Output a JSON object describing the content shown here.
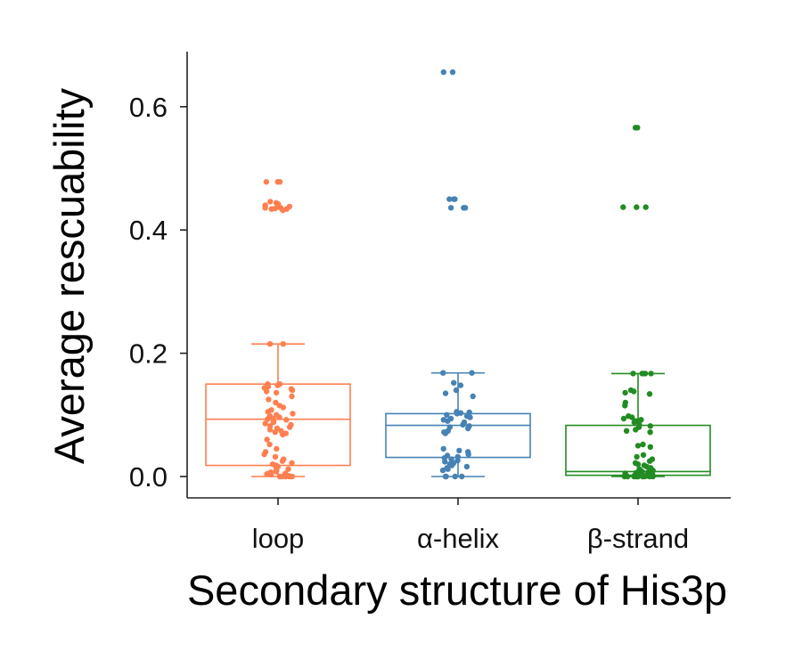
{
  "chart_data": {
    "type": "box+strip",
    "title": "",
    "xlabel": "Secondary structure of His3p",
    "ylabel": "Average rescuability",
    "ylim": [
      -0.035,
      0.69
    ],
    "yticks": [
      0.0,
      0.2,
      0.4,
      0.6
    ],
    "ytick_labels": [
      "0.0",
      "0.2",
      "0.4",
      "0.6"
    ],
    "grid": false,
    "categories": [
      "loop",
      "α-helix",
      "β-strand"
    ],
    "colors": [
      "#ff7f50",
      "#4682b4",
      "#228b22"
    ],
    "boxes": [
      {
        "category": "loop",
        "whisker_low": 0.0,
        "q1": 0.018,
        "median": 0.093,
        "q3": 0.15,
        "whisker_high": 0.215
      },
      {
        "category": "α-helix",
        "whisker_low": 0.0,
        "q1": 0.031,
        "median": 0.083,
        "q3": 0.102,
        "whisker_high": 0.168
      },
      {
        "category": "β-strand",
        "whisker_low": 0.0,
        "q1": 0.002,
        "median": 0.008,
        "q3": 0.083,
        "whisker_high": 0.167
      }
    ],
    "points": [
      [
        0.478,
        0.478,
        0.478,
        0.446,
        0.444,
        0.442,
        0.44,
        0.438,
        0.436,
        0.435,
        0.434,
        0.434,
        0.432,
        0.436,
        0.44,
        0.215,
        0.215,
        0.15,
        0.15,
        0.148,
        0.146,
        0.144,
        0.142,
        0.14,
        0.138,
        0.136,
        0.13,
        0.125,
        0.12,
        0.115,
        0.112,
        0.108,
        0.105,
        0.102,
        0.1,
        0.098,
        0.096,
        0.094,
        0.093,
        0.092,
        0.09,
        0.088,
        0.086,
        0.084,
        0.082,
        0.08,
        0.078,
        0.076,
        0.074,
        0.072,
        0.07,
        0.068,
        0.06,
        0.052,
        0.045,
        0.04,
        0.036,
        0.032,
        0.028,
        0.025,
        0.022,
        0.02,
        0.018,
        0.016,
        0.014,
        0.012,
        0.01,
        0.008,
        0.007,
        0.006,
        0.005,
        0.004,
        0.003,
        0.002,
        0.001,
        0.0,
        0.0,
        0.0,
        0.0,
        0.0,
        0.0
      ],
      [
        0.656,
        0.656,
        0.45,
        0.45,
        0.45,
        0.436,
        0.436,
        0.436,
        0.168,
        0.168,
        0.152,
        0.148,
        0.14,
        0.135,
        0.13,
        0.105,
        0.104,
        0.103,
        0.102,
        0.1,
        0.098,
        0.096,
        0.094,
        0.092,
        0.09,
        0.088,
        0.086,
        0.084,
        0.082,
        0.08,
        0.078,
        0.074,
        0.072,
        0.07,
        0.045,
        0.042,
        0.04,
        0.036,
        0.034,
        0.032,
        0.03,
        0.028,
        0.026,
        0.024,
        0.022,
        0.02,
        0.018,
        0.016,
        0.014,
        0.012,
        0.01,
        0.0,
        0.0,
        0.0,
        0.0
      ],
      [
        0.566,
        0.566,
        0.437,
        0.437,
        0.437,
        0.167,
        0.167,
        0.167,
        0.167,
        0.167,
        0.14,
        0.138,
        0.136,
        0.134,
        0.12,
        0.115,
        0.098,
        0.096,
        0.094,
        0.092,
        0.09,
        0.088,
        0.084,
        0.082,
        0.08,
        0.076,
        0.074,
        0.072,
        0.052,
        0.05,
        0.048,
        0.035,
        0.032,
        0.028,
        0.025,
        0.022,
        0.02,
        0.018,
        0.016,
        0.014,
        0.012,
        0.01,
        0.008,
        0.007,
        0.006,
        0.005,
        0.004,
        0.003,
        0.002,
        0.002,
        0.001,
        0.001,
        0.0,
        0.0,
        0.0,
        0.0,
        0.0,
        0.0,
        0.0,
        0.0,
        0.0,
        0.0
      ]
    ]
  }
}
